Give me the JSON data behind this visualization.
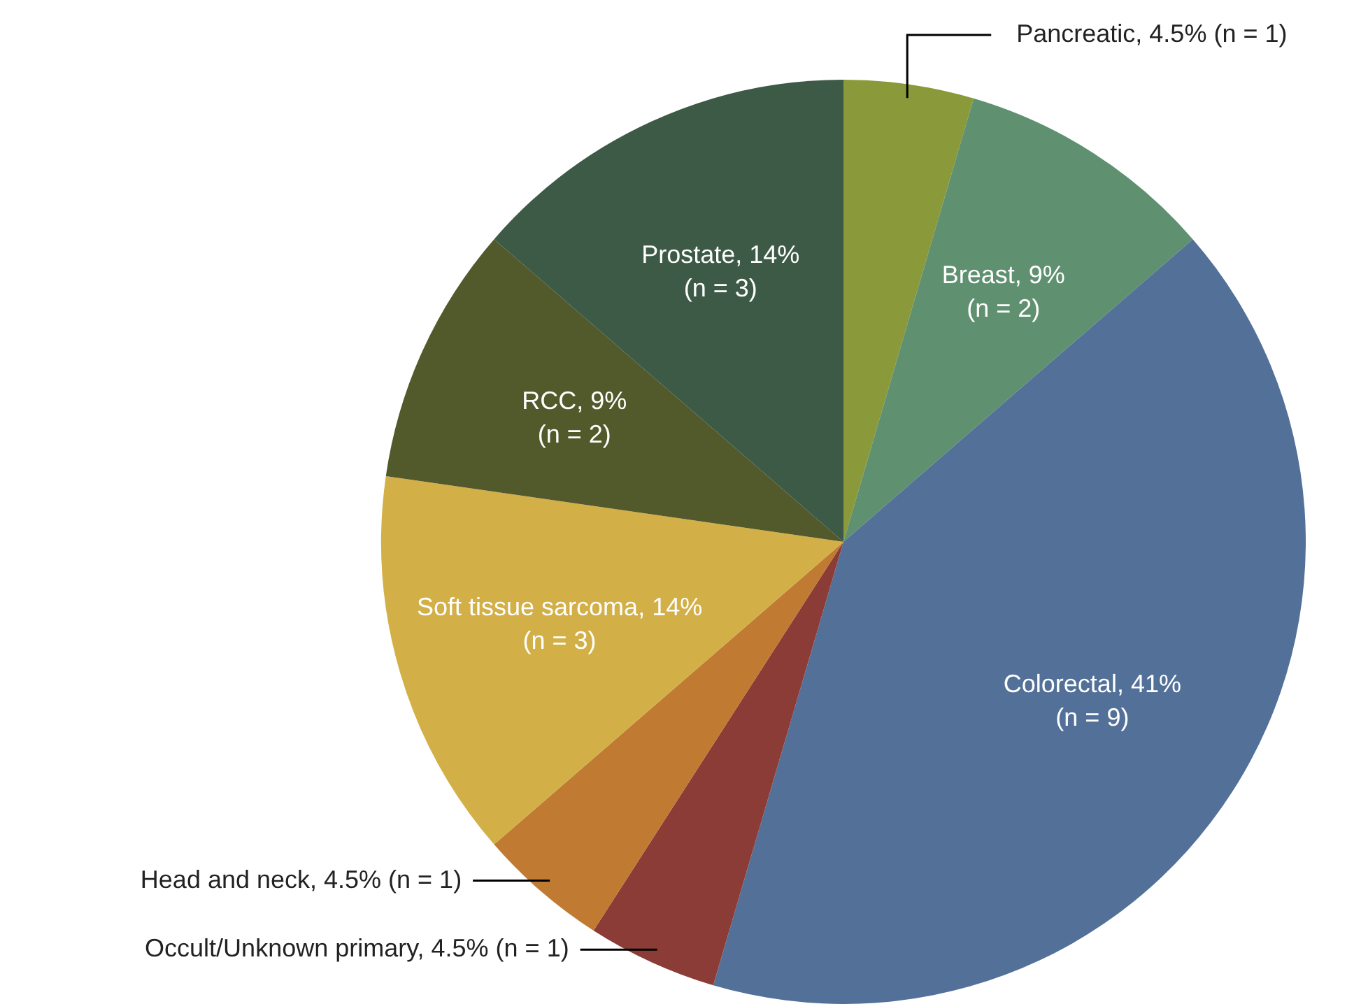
{
  "chart_data": {
    "type": "pie",
    "categories": [
      "Pancreatic",
      "Breast",
      "Colorectal",
      "Occult/Unknown primary",
      "Head and neck",
      "Soft tissue sarcoma",
      "RCC",
      "Prostate"
    ],
    "values": [
      1,
      2,
      9,
      1,
      1,
      3,
      2,
      3
    ],
    "value_labels": [
      "4.5% (n = 1)",
      "9% (n = 2)",
      "41% (n = 9)",
      "4.5% (n = 1)",
      "4.5% (n = 1)",
      "14% (n = 3)",
      "9% (n = 2)",
      "14% (n = 3)"
    ],
    "colors": [
      "#8a9a3a",
      "#5f9070",
      "#537099",
      "#8b3c36",
      "#c07a32",
      "#d3af47",
      "#52592a",
      "#3d5a46"
    ],
    "legend": false
  }
}
